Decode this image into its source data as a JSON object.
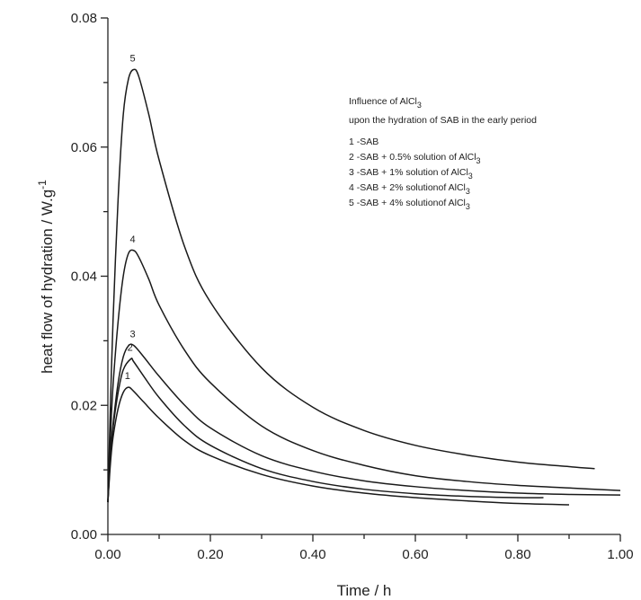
{
  "chart_data": {
    "type": "line",
    "xlabel": "Time / h",
    "ylabel": "heat flow of hydration / W.g",
    "ylabel_sup": "-1",
    "xlim": [
      0,
      1.0
    ],
    "ylim": [
      0,
      0.08
    ],
    "xticks": [
      "0.00",
      "0.20",
      "0.40",
      "0.60",
      "0.80",
      "1.00"
    ],
    "yticks": [
      "0.00",
      "0.02",
      "0.04",
      "0.06",
      "0.08"
    ],
    "annotation": {
      "title_pre": "Influence of AlCl",
      "title_sub": "3",
      "title_line2": "upon the hydration of SAB in the early period",
      "entries": [
        {
          "pre": "1 -SAB",
          "sub": ""
        },
        {
          "pre": "2 -SAB + 0.5% solution of AlCl",
          "sub": "3"
        },
        {
          "pre": "3 -SAB + 1%  solution of AlCl",
          "sub": "3"
        },
        {
          "pre": "4 -SAB + 2%  solutionof AlCl",
          "sub": "3"
        },
        {
          "pre": "5 -SAB + 4% solutionof AlCl",
          "sub": "3"
        }
      ]
    },
    "series": [
      {
        "name": "1",
        "points": [
          [
            0,
            0.005
          ],
          [
            0.005,
            0.011
          ],
          [
            0.01,
            0.015
          ],
          [
            0.02,
            0.0195
          ],
          [
            0.03,
            0.022
          ],
          [
            0.04,
            0.0228
          ],
          [
            0.05,
            0.0222
          ],
          [
            0.07,
            0.0205
          ],
          [
            0.1,
            0.018
          ],
          [
            0.15,
            0.0145
          ],
          [
            0.2,
            0.0122
          ],
          [
            0.3,
            0.0093
          ],
          [
            0.4,
            0.0075
          ],
          [
            0.5,
            0.0064
          ],
          [
            0.6,
            0.0057
          ],
          [
            0.7,
            0.0052
          ],
          [
            0.8,
            0.0048
          ],
          [
            0.9,
            0.0046
          ]
        ]
      },
      {
        "name": "2",
        "points": [
          [
            0,
            0.005
          ],
          [
            0.005,
            0.012
          ],
          [
            0.01,
            0.0165
          ],
          [
            0.02,
            0.022
          ],
          [
            0.03,
            0.0255
          ],
          [
            0.045,
            0.0272
          ],
          [
            0.05,
            0.0268
          ],
          [
            0.07,
            0.0245
          ],
          [
            0.1,
            0.0212
          ],
          [
            0.15,
            0.0168
          ],
          [
            0.2,
            0.0138
          ],
          [
            0.3,
            0.0102
          ],
          [
            0.4,
            0.0082
          ],
          [
            0.5,
            0.007
          ],
          [
            0.6,
            0.0063
          ],
          [
            0.7,
            0.0059
          ],
          [
            0.8,
            0.0057
          ],
          [
            0.85,
            0.0057
          ]
        ]
      },
      {
        "name": "3",
        "points": [
          [
            0,
            0.005
          ],
          [
            0.005,
            0.0125
          ],
          [
            0.01,
            0.017
          ],
          [
            0.02,
            0.0235
          ],
          [
            0.03,
            0.0275
          ],
          [
            0.04,
            0.0292
          ],
          [
            0.05,
            0.0293
          ],
          [
            0.07,
            0.0275
          ],
          [
            0.1,
            0.0245
          ],
          [
            0.15,
            0.02
          ],
          [
            0.2,
            0.0165
          ],
          [
            0.3,
            0.0122
          ],
          [
            0.4,
            0.0098
          ],
          [
            0.5,
            0.0083
          ],
          [
            0.6,
            0.0074
          ],
          [
            0.7,
            0.0068
          ],
          [
            0.8,
            0.0064
          ],
          [
            0.9,
            0.0062
          ],
          [
            1.0,
            0.0061
          ]
        ]
      },
      {
        "name": "4",
        "points": [
          [
            0,
            0.005
          ],
          [
            0.005,
            0.015
          ],
          [
            0.01,
            0.023
          ],
          [
            0.02,
            0.033
          ],
          [
            0.03,
            0.04
          ],
          [
            0.04,
            0.0435
          ],
          [
            0.05,
            0.044
          ],
          [
            0.06,
            0.043
          ],
          [
            0.08,
            0.0395
          ],
          [
            0.1,
            0.0355
          ],
          [
            0.15,
            0.0285
          ],
          [
            0.2,
            0.0235
          ],
          [
            0.3,
            0.0168
          ],
          [
            0.4,
            0.013
          ],
          [
            0.5,
            0.0107
          ],
          [
            0.6,
            0.0091
          ],
          [
            0.7,
            0.0082
          ],
          [
            0.8,
            0.0076
          ],
          [
            0.9,
            0.0072
          ],
          [
            1.0,
            0.0068
          ]
        ]
      },
      {
        "name": "5",
        "points": [
          [
            0,
            0.005
          ],
          [
            0.005,
            0.02
          ],
          [
            0.01,
            0.033
          ],
          [
            0.02,
            0.052
          ],
          [
            0.03,
            0.065
          ],
          [
            0.04,
            0.0705
          ],
          [
            0.05,
            0.072
          ],
          [
            0.06,
            0.071
          ],
          [
            0.08,
            0.065
          ],
          [
            0.1,
            0.058
          ],
          [
            0.15,
            0.0445
          ],
          [
            0.2,
            0.036
          ],
          [
            0.3,
            0.0258
          ],
          [
            0.4,
            0.0197
          ],
          [
            0.5,
            0.0161
          ],
          [
            0.6,
            0.0138
          ],
          [
            0.7,
            0.0123
          ],
          [
            0.8,
            0.0112
          ],
          [
            0.9,
            0.0105
          ],
          [
            0.95,
            0.0102
          ]
        ]
      }
    ]
  }
}
